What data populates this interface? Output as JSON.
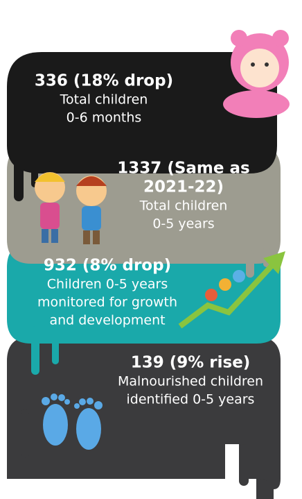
{
  "cards": [
    {
      "headline": [
        "336 (18% drop)"
      ],
      "lines": [
        "Total children",
        "0-6 months"
      ]
    },
    {
      "headline": [
        "1337 (Same as",
        "2021-22)"
      ],
      "lines": [
        "Total children",
        "0-5 years"
      ]
    },
    {
      "headline": [
        "932 (8% drop)"
      ],
      "lines": [
        "Children 0-5 years",
        "monitored for growth",
        "and development"
      ]
    },
    {
      "headline": [
        "139 (9% rise)"
      ],
      "lines": [
        "Malnourished children",
        "identified 0-5 years"
      ]
    }
  ]
}
